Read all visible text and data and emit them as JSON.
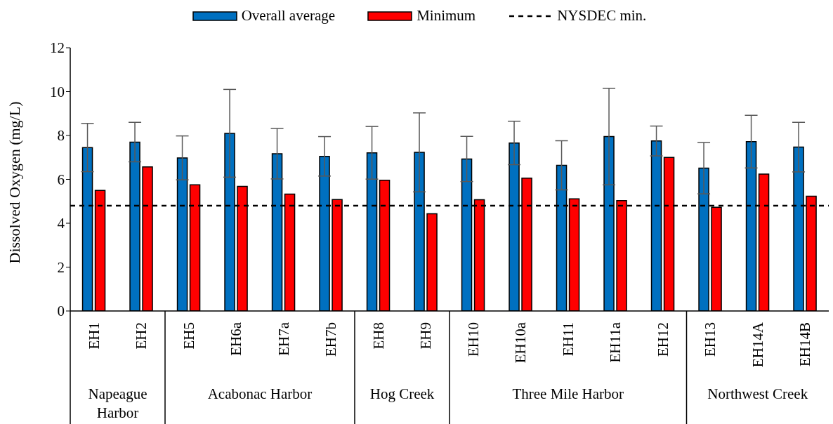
{
  "chart_data": {
    "type": "bar",
    "ylabel": "Dissolved Oxygen (mg/L)",
    "categories": [
      "EH1",
      "EH2",
      "EH5",
      "EH6a",
      "EH7a",
      "EH7b",
      "EH8",
      "EH9",
      "EH10",
      "EH10a",
      "EH11",
      "EH11a",
      "EH12",
      "EH13",
      "EH14A",
      "EH14B"
    ],
    "series": [
      {
        "name": "Overall average",
        "color": "#0070c0",
        "values": [
          7.45,
          7.7,
          6.98,
          8.1,
          7.17,
          7.05,
          7.21,
          7.23,
          6.93,
          7.66,
          6.64,
          7.95,
          7.75,
          6.51,
          7.72,
          7.47
        ],
        "errors": [
          1.1,
          0.9,
          1.0,
          2.0,
          1.15,
          0.9,
          1.2,
          1.8,
          1.03,
          0.99,
          1.12,
          2.2,
          0.68,
          1.17,
          1.2,
          1.13
        ]
      },
      {
        "name": "Minimum",
        "color": "#ff0000",
        "values": [
          5.5,
          6.57,
          5.75,
          5.68,
          5.33,
          5.08,
          5.96,
          4.43,
          5.07,
          6.06,
          5.11,
          5.03,
          7.0,
          4.73,
          6.24,
          5.23
        ]
      }
    ],
    "ref_lines": [
      {
        "axis": "y",
        "value": 4.8,
        "label": "NYSDEC min.",
        "color": "#000000",
        "line_style": "dashed"
      }
    ],
    "annotations": [
      "Napeague Harbor",
      "Acabonac Harbor",
      "Hog Creek",
      "Three Mile Harbor",
      "Northwest Creek"
    ],
    "ylim": [
      0,
      12
    ],
    "yticks": [
      0,
      2,
      4,
      6,
      8,
      10,
      12
    ],
    "legend": "top"
  }
}
